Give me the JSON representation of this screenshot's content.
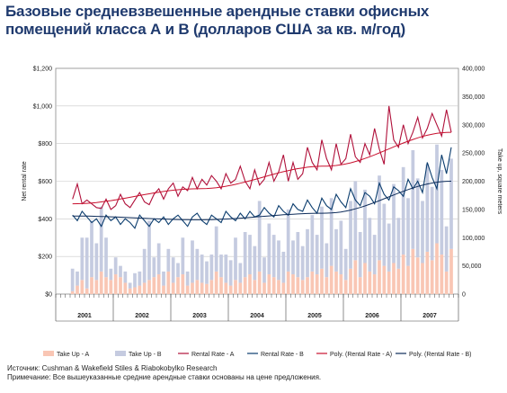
{
  "title": {
    "line1": "Базовые средневзвешенные арендные ставки офисных",
    "line2": "помещений класса А и В (долларов США за кв. м/год)"
  },
  "footnotes": {
    "source": "Источник: Cushman & Wakefield Stiles & Riabokobylko Research",
    "note": "Примечание: Все вышеуказанные средние арендные ставки основаны на цене предложения."
  },
  "colors": {
    "takeup_a": "#f9c6b4",
    "takeup_b": "#c5cbe0",
    "rate_a": "#b0103a",
    "rate_b": "#0b3d6e",
    "poly_a": "#c8102e",
    "poly_b": "#0d2c5a",
    "grid": "#c8c8c8"
  },
  "chart_data": {
    "type": "bar",
    "xlabel": "",
    "ylabel": "Net rental rate",
    "y2label": "Take up, square meters",
    "ylim": [
      0,
      1200
    ],
    "y2lim": [
      0,
      400000
    ],
    "yticks": [
      "$0",
      "$200",
      "$400",
      "$600",
      "$800",
      "$1,000",
      "$1,200"
    ],
    "y2ticks": [
      "0",
      "50,000",
      "100,000",
      "150,000",
      "200,000",
      "250,000",
      "300,000",
      "350,000",
      "400,000"
    ],
    "grid": true,
    "legend_position": "bottom",
    "years": [
      "2001",
      "2002",
      "2003",
      "2004",
      "2005",
      "2006",
      "2007"
    ],
    "months_per_year": 12,
    "start_month_index": 3,
    "series": [
      {
        "name": "Take Up - A",
        "kind": "bar",
        "axis": "right",
        "values": [
          5000,
          15000,
          25000,
          10000,
          30000,
          25000,
          40000,
          30000,
          25000,
          35000,
          30000,
          20000,
          10000,
          12000,
          15000,
          20000,
          25000,
          30000,
          35000,
          15000,
          40000,
          20000,
          30000,
          35000,
          15000,
          20000,
          25000,
          20000,
          18000,
          25000,
          40000,
          30000,
          20000,
          15000,
          25000,
          20000,
          30000,
          35000,
          25000,
          40000,
          20000,
          35000,
          30000,
          25000,
          20000,
          40000,
          35000,
          30000,
          25000,
          30000,
          40000,
          35000,
          45000,
          30000,
          50000,
          40000,
          35000,
          25000,
          45000,
          60000,
          30000,
          55000,
          40000,
          35000,
          60000,
          50000,
          40000,
          55000,
          45000,
          70000,
          50000,
          80000,
          65000,
          55000,
          75000,
          60000,
          90000,
          70000,
          40000,
          80000
        ]
      },
      {
        "name": "Take Up - B",
        "kind": "bar",
        "axis": "right",
        "values": [
          40000,
          25000,
          75000,
          90000,
          100000,
          65000,
          115000,
          70000,
          20000,
          30000,
          20000,
          20000,
          10000,
          25000,
          25000,
          60000,
          105000,
          35000,
          55000,
          25000,
          40000,
          45000,
          25000,
          65000,
          25000,
          75000,
          55000,
          50000,
          40000,
          45000,
          80000,
          40000,
          50000,
          45000,
          75000,
          35000,
          80000,
          70000,
          60000,
          125000,
          45000,
          90000,
          75000,
          70000,
          55000,
          110000,
          60000,
          80000,
          60000,
          85000,
          100000,
          70000,
          110000,
          60000,
          120000,
          75000,
          95000,
          55000,
          120000,
          140000,
          80000,
          130000,
          95000,
          70000,
          150000,
          110000,
          85000,
          140000,
          90000,
          155000,
          120000,
          175000,
          140000,
          110000,
          155000,
          130000,
          175000,
          150000,
          80000,
          160000
        ]
      },
      {
        "name": "Rental Rate - A",
        "kind": "line",
        "axis": "left",
        "values": [
          505,
          585,
          480,
          500,
          480,
          460,
          455,
          505,
          450,
          470,
          530,
          480,
          460,
          500,
          540,
          490,
          475,
          530,
          560,
          505,
          560,
          590,
          520,
          570,
          550,
          620,
          560,
          610,
          580,
          630,
          600,
          560,
          640,
          590,
          610,
          680,
          600,
          560,
          660,
          580,
          610,
          700,
          600,
          650,
          740,
          600,
          700,
          610,
          640,
          780,
          700,
          660,
          820,
          720,
          660,
          800,
          690,
          720,
          850,
          730,
          700,
          800,
          740,
          880,
          770,
          690,
          1000,
          820,
          780,
          900,
          800,
          860,
          940,
          830,
          880,
          960,
          900,
          840,
          980,
          860
        ]
      },
      {
        "name": "Rental Rate - B",
        "kind": "line",
        "axis": "left",
        "values": [
          420,
          390,
          440,
          410,
          380,
          400,
          360,
          420,
          390,
          410,
          370,
          400,
          380,
          350,
          420,
          390,
          360,
          400,
          380,
          410,
          370,
          400,
          420,
          390,
          360,
          410,
          430,
          390,
          370,
          420,
          400,
          380,
          440,
          410,
          390,
          430,
          400,
          440,
          410,
          420,
          460,
          430,
          410,
          470,
          440,
          420,
          480,
          450,
          440,
          500,
          460,
          430,
          510,
          470,
          450,
          530,
          490,
          460,
          560,
          500,
          470,
          540,
          520,
          480,
          590,
          530,
          500,
          570,
          550,
          520,
          610,
          560,
          600,
          540,
          700,
          620,
          560,
          740,
          640,
          780
        ]
      },
      {
        "name": "Poly. (Rental Rate - A)",
        "kind": "trend",
        "axis": "left",
        "values": [
          480,
          560,
          680,
          860
        ]
      },
      {
        "name": "Poly. (Rental Rate - B)",
        "kind": "trend",
        "axis": "left",
        "values": [
          415,
          395,
          430,
          600
        ]
      }
    ]
  }
}
